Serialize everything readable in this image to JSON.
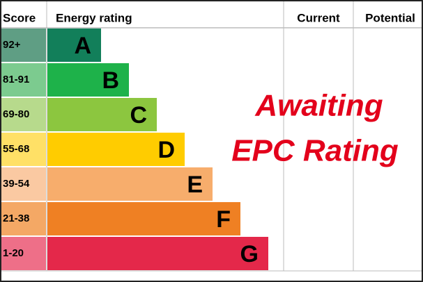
{
  "header": {
    "score": "Score",
    "energy_rating": "Energy rating",
    "current": "Current",
    "potential": "Potential"
  },
  "rows": [
    {
      "score": "92+",
      "rating": "A",
      "color": "#127f5a",
      "score_color": "#5f9e84"
    },
    {
      "score": "81-91",
      "rating": "B",
      "color": "#1eb24a",
      "score_color": "#7ccb8f"
    },
    {
      "score": "69-80",
      "rating": "C",
      "color": "#8cc63f",
      "score_color": "#b7da8c"
    },
    {
      "score": "55-68",
      "rating": "D",
      "color": "#ffcc00",
      "score_color": "#ffe066"
    },
    {
      "score": "39-54",
      "rating": "E",
      "color": "#f7ad6c",
      "score_color": "#fac9a2"
    },
    {
      "score": "21-38",
      "rating": "F",
      "color": "#ef8023",
      "score_color": "#f4a865"
    },
    {
      "score": "1-20",
      "rating": "G",
      "color": "#e4284a",
      "score_color": "#ee6f88"
    }
  ],
  "overlay": [
    "Awaiting",
    "EPC Rating"
  ]
}
